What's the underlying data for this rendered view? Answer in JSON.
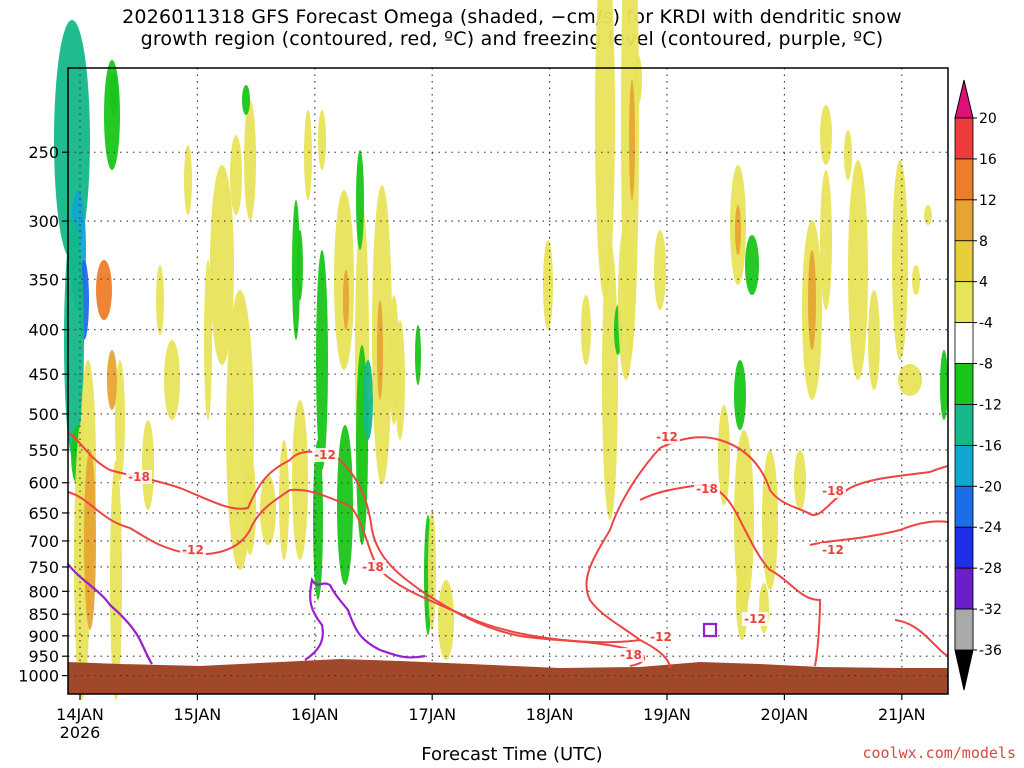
{
  "title": {
    "line1": "2026011318 GFS Forecast Omega (shaded, −cm/s) for KRDI with dendritic snow",
    "line2": "growth region (contoured, red, ºC) and freezing level (contoured, purple, ºC)"
  },
  "credit": "coolwx.com/models",
  "chart_data": {
    "type": "heatmap",
    "title": "2026011318 GFS Forecast Omega (shaded, −cm/s) for KRDI with dendritic snow growth region (contoured, red, ºC) and freezing level (contoured, purple, ºC)",
    "xlabel": "Forecast Time (UTC)",
    "ylabel": "",
    "x_ticks": [
      "14JAN",
      "15JAN",
      "16JAN",
      "17JAN",
      "18JAN",
      "19JAN",
      "20JAN",
      "21JAN"
    ],
    "x_tick_sub": "2026",
    "y_ticks": [
      250,
      300,
      350,
      400,
      450,
      500,
      550,
      600,
      650,
      700,
      750,
      800,
      850,
      900,
      950,
      1000
    ],
    "ylim": [
      1050,
      200
    ],
    "y_scale": "log",
    "grid": true,
    "colorbar": {
      "labels": [
        20,
        16,
        12,
        8,
        4,
        -4,
        -8,
        -12,
        -16,
        -20,
        -24,
        -28,
        -32,
        -36
      ],
      "colors": [
        "#ee3c3c",
        "#ee7d2b",
        "#e6a533",
        "#e6cd3a",
        "#e8e45a",
        "#ffffff",
        "#19c519",
        "#14b889",
        "#12a7d0",
        "#1c6de8",
        "#1f2ee8",
        "#6a1fc8",
        "#a31dd2",
        "#a9a9a9"
      ],
      "top_arrow_color": "#e0107a",
      "bottom_arrow_color": "#000000"
    },
    "contour_labels": {
      "dgz": [
        "-18",
        "-12",
        "-12",
        "-18",
        "-18",
        "-12",
        "-12",
        "-18",
        "-12",
        "-18",
        "-12"
      ]
    },
    "terrain_color": "#a0492a",
    "dgz_color": "#ee4444",
    "freezing_color": "#9b1fd0"
  }
}
